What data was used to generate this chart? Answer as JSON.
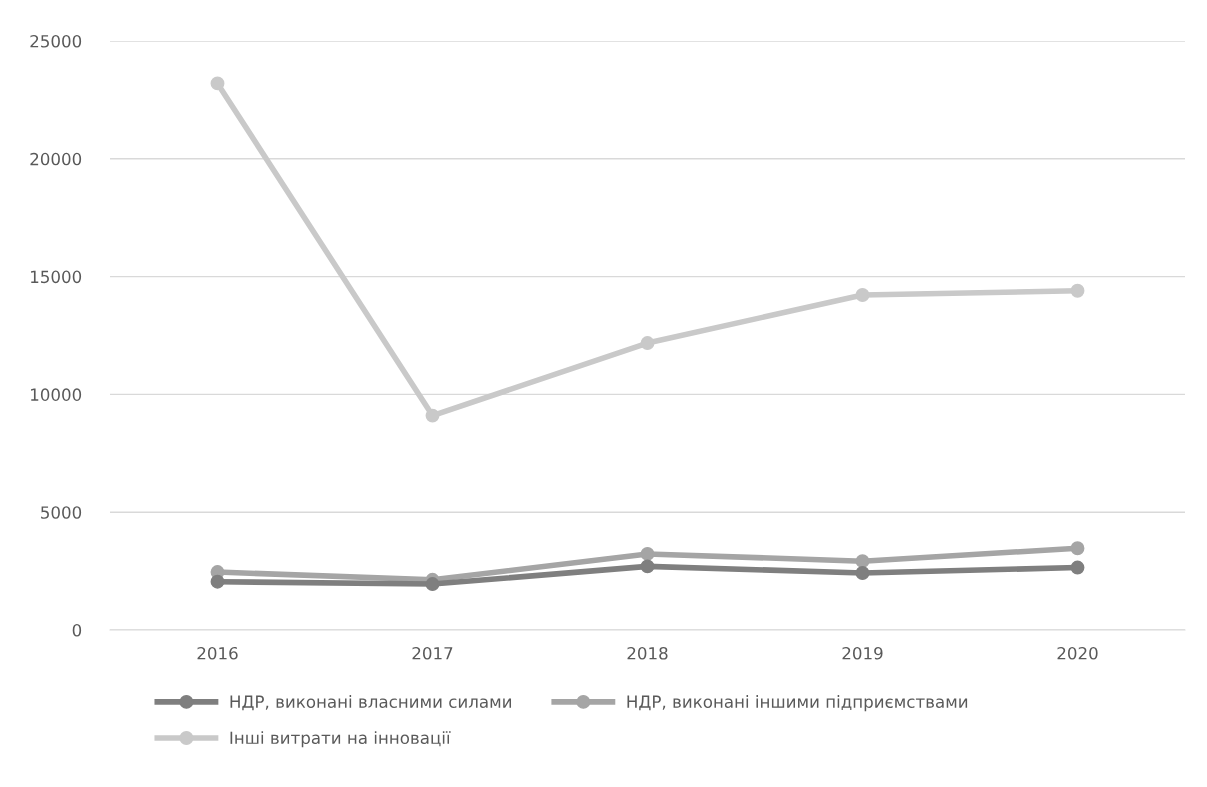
{
  "chart_data": {
    "type": "line",
    "categories": [
      "2016",
      "2017",
      "2018",
      "2019",
      "2020"
    ],
    "series": [
      {
        "name": "НДР, виконані власними силами",
        "color": "#7f7f7f",
        "values": [
          2050,
          1950,
          2700,
          2420,
          2650
        ]
      },
      {
        "name": "НДР, виконані іншими підприємствами",
        "color": "#a5a5a5",
        "values": [
          2460,
          2130,
          3230,
          2920,
          3470
        ]
      },
      {
        "name": "Інші витрати на інновації",
        "color": "#c9c9c9",
        "values": [
          23200,
          9100,
          12180,
          14220,
          14400
        ]
      }
    ],
    "ylim": [
      0,
      25000
    ],
    "yticks": [
      0,
      5000,
      10000,
      15000,
      20000,
      25000
    ],
    "grid": "y",
    "legend": "bottom",
    "marker": "circle",
    "line_style": "solid"
  }
}
